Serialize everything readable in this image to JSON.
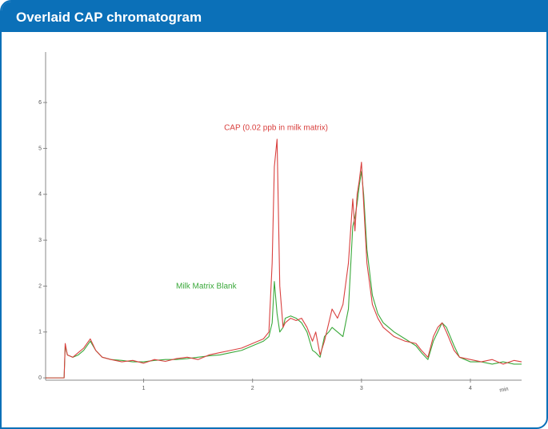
{
  "chart_data": {
    "type": "line",
    "title": "Overlaid CAP chromatogram",
    "x_label": "min",
    "x": [
      0.1,
      0.27,
      0.28,
      0.3,
      0.35,
      0.4,
      0.45,
      0.51,
      0.56,
      0.62,
      0.7,
      0.8,
      0.9,
      1.0,
      1.1,
      1.2,
      1.3,
      1.4,
      1.5,
      1.6,
      1.7,
      1.8,
      1.9,
      2.0,
      2.1,
      2.15,
      2.18,
      2.2,
      2.225,
      2.25,
      2.28,
      2.3,
      2.35,
      2.4,
      2.45,
      2.5,
      2.55,
      2.58,
      2.62,
      2.66,
      2.7,
      2.73,
      2.78,
      2.83,
      2.88,
      2.92,
      2.94,
      2.96,
      2.98,
      3.0,
      3.02,
      3.05,
      3.1,
      3.15,
      3.2,
      3.3,
      3.4,
      3.5,
      3.55,
      3.61,
      3.66,
      3.7,
      3.74,
      3.78,
      3.85,
      3.9,
      4.0,
      4.1,
      4.2,
      4.3,
      4.4,
      4.47
    ],
    "series": [
      {
        "name": "Milk Matrix Blank",
        "color": "#3aa83a",
        "values": [
          0,
          0,
          0.7,
          0.5,
          0.45,
          0.5,
          0.6,
          0.8,
          0.6,
          0.45,
          0.4,
          0.38,
          0.35,
          0.35,
          0.38,
          0.4,
          0.4,
          0.42,
          0.45,
          0.48,
          0.5,
          0.55,
          0.6,
          0.7,
          0.8,
          0.9,
          1.2,
          2.1,
          1.4,
          1.0,
          1.1,
          1.3,
          1.35,
          1.3,
          1.2,
          1.0,
          0.6,
          0.55,
          0.45,
          0.9,
          1.0,
          1.1,
          1.0,
          0.9,
          1.5,
          3.3,
          3.5,
          3.8,
          4.2,
          4.5,
          4.0,
          2.8,
          1.8,
          1.4,
          1.2,
          1.0,
          0.85,
          0.7,
          0.55,
          0.4,
          0.8,
          1.0,
          1.2,
          1.1,
          0.7,
          0.45,
          0.35,
          0.35,
          0.3,
          0.35,
          0.3,
          0.3
        ]
      },
      {
        "name": "CAP (0.02 ppb in milk matrix)",
        "color": "#d9413f",
        "values": [
          0,
          0,
          0.75,
          0.5,
          0.45,
          0.55,
          0.65,
          0.85,
          0.6,
          0.45,
          0.4,
          0.35,
          0.38,
          0.32,
          0.4,
          0.36,
          0.42,
          0.45,
          0.4,
          0.5,
          0.55,
          0.6,
          0.65,
          0.75,
          0.85,
          1.0,
          2.5,
          4.6,
          5.2,
          2.0,
          1.1,
          1.2,
          1.3,
          1.25,
          1.3,
          1.1,
          0.8,
          1.0,
          0.5,
          0.8,
          1.2,
          1.5,
          1.3,
          1.6,
          2.5,
          3.9,
          3.2,
          4.0,
          4.3,
          4.7,
          3.8,
          2.5,
          1.6,
          1.3,
          1.1,
          0.9,
          0.8,
          0.75,
          0.6,
          0.45,
          0.9,
          1.1,
          1.2,
          1.0,
          0.6,
          0.45,
          0.4,
          0.35,
          0.4,
          0.3,
          0.38,
          0.35
        ]
      }
    ],
    "xlim": [
      0.1,
      4.47
    ],
    "xticks": [
      1,
      2,
      3,
      4
    ],
    "ylim": [
      -0.05,
      7.1
    ],
    "yticks": [
      0,
      1,
      2,
      3,
      4,
      5,
      6
    ]
  }
}
